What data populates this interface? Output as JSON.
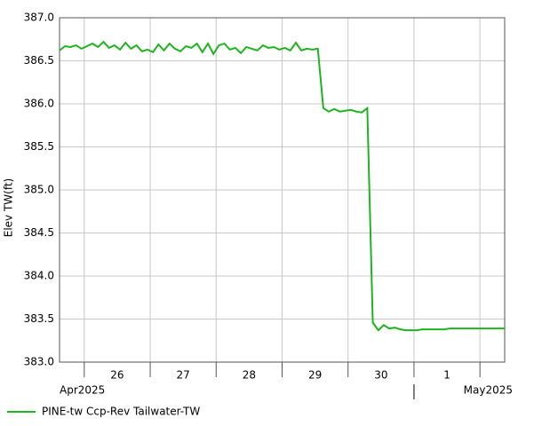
{
  "chart_data": {
    "type": "line",
    "y_label": "Elev TW(ft)",
    "x": [
      "2025-04-25T15:00",
      "2025-04-25T17:00",
      "2025-04-25T19:00",
      "2025-04-25T21:00",
      "2025-04-25T23:00",
      "2025-04-26T01:00",
      "2025-04-26T03:00",
      "2025-04-26T05:00",
      "2025-04-26T07:00",
      "2025-04-26T09:00",
      "2025-04-26T11:00",
      "2025-04-26T13:00",
      "2025-04-26T15:00",
      "2025-04-26T17:00",
      "2025-04-26T19:00",
      "2025-04-26T21:00",
      "2025-04-26T23:00",
      "2025-04-27T01:00",
      "2025-04-27T03:00",
      "2025-04-27T05:00",
      "2025-04-27T07:00",
      "2025-04-27T09:00",
      "2025-04-27T11:00",
      "2025-04-27T13:00",
      "2025-04-27T15:00",
      "2025-04-27T17:00",
      "2025-04-27T19:00",
      "2025-04-27T21:00",
      "2025-04-27T23:00",
      "2025-04-28T01:00",
      "2025-04-28T03:00",
      "2025-04-28T05:00",
      "2025-04-28T07:00",
      "2025-04-28T09:00",
      "2025-04-28T11:00",
      "2025-04-28T13:00",
      "2025-04-28T15:00",
      "2025-04-28T17:00",
      "2025-04-28T19:00",
      "2025-04-28T21:00",
      "2025-04-28T23:00",
      "2025-04-29T01:00",
      "2025-04-29T03:00",
      "2025-04-29T05:00",
      "2025-04-29T07:00",
      "2025-04-29T09:00",
      "2025-04-29T11:00",
      "2025-04-29T13:00",
      "2025-04-29T15:00",
      "2025-04-29T17:00",
      "2025-04-29T19:00",
      "2025-04-29T21:00",
      "2025-04-29T23:00",
      "2025-04-30T01:00",
      "2025-04-30T03:00",
      "2025-04-30T05:00",
      "2025-04-30T07:00",
      "2025-04-30T09:00",
      "2025-04-30T11:00",
      "2025-04-30T13:00",
      "2025-04-30T15:00",
      "2025-04-30T17:00",
      "2025-04-30T19:00",
      "2025-04-30T21:00",
      "2025-04-30T23:00",
      "2025-05-01T01:00",
      "2025-05-01T03:00",
      "2025-05-01T05:00",
      "2025-05-01T07:00",
      "2025-05-01T09:00",
      "2025-05-01T11:00",
      "2025-05-01T13:00",
      "2025-05-01T15:00",
      "2025-05-01T17:00",
      "2025-05-01T19:00",
      "2025-05-01T21:00",
      "2025-05-01T23:00",
      "2025-05-02T01:00",
      "2025-05-02T03:00",
      "2025-05-02T05:00",
      "2025-05-02T07:00",
      "2025-05-02T09:00"
    ],
    "series": [
      {
        "name": "PINE-tw Ccp-Rev Tailwater-TW",
        "color": "#1fb31f",
        "values": [
          386.62,
          386.67,
          386.66,
          386.68,
          386.64,
          386.67,
          386.7,
          386.66,
          386.72,
          386.65,
          386.68,
          386.63,
          386.71,
          386.64,
          386.68,
          386.61,
          386.63,
          386.6,
          386.69,
          386.62,
          386.7,
          386.64,
          386.61,
          386.67,
          386.65,
          386.7,
          386.6,
          386.7,
          386.58,
          386.68,
          386.7,
          386.63,
          386.65,
          386.59,
          386.66,
          386.64,
          386.62,
          386.68,
          386.65,
          386.66,
          386.63,
          386.65,
          386.62,
          386.71,
          386.62,
          386.64,
          386.63,
          386.64,
          385.95,
          385.91,
          385.94,
          385.91,
          385.92,
          385.93,
          385.91,
          385.9,
          385.95,
          383.46,
          383.37,
          383.43,
          383.39,
          383.4,
          383.38,
          383.37,
          383.37,
          383.37,
          383.38,
          383.38,
          383.38,
          383.38,
          383.38,
          383.39,
          383.39,
          383.39,
          383.39,
          383.39,
          383.39,
          383.39,
          383.39,
          383.39,
          383.39,
          383.39
        ]
      }
    ],
    "xlim": [
      "2025-04-25T15:00",
      "2025-05-02T09:00"
    ],
    "xticks": [
      {
        "value": "2025-04-26T00:00",
        "label": "26"
      },
      {
        "value": "2025-04-27T00:00",
        "label": "27"
      },
      {
        "value": "2025-04-28T00:00",
        "label": "28"
      },
      {
        "value": "2025-04-29T00:00",
        "label": "29"
      },
      {
        "value": "2025-04-30T00:00",
        "label": "30"
      },
      {
        "value": "2025-05-01T00:00",
        "label": "1"
      },
      {
        "value": "2025-05-02T00:00",
        "label": null
      }
    ],
    "month_labels": [
      {
        "value": "2025-04-25T15:00",
        "label": "Apr2025"
      },
      {
        "value": "2025-05-01T00:00",
        "label": "May2025"
      }
    ],
    "ylim": [
      383.0,
      387.0
    ],
    "yticks": [
      {
        "value": 383.0,
        "label": "383.0"
      },
      {
        "value": 383.5,
        "label": "383.5"
      },
      {
        "value": 384.0,
        "label": "384.0"
      },
      {
        "value": 384.5,
        "label": "384.5"
      },
      {
        "value": 385.0,
        "label": "385.0"
      },
      {
        "value": 385.5,
        "label": "385.5"
      },
      {
        "value": 386.0,
        "label": "386.0"
      },
      {
        "value": 386.5,
        "label": "386.5"
      },
      {
        "value": 387.0,
        "label": "387.0"
      }
    ],
    "grid": true
  }
}
